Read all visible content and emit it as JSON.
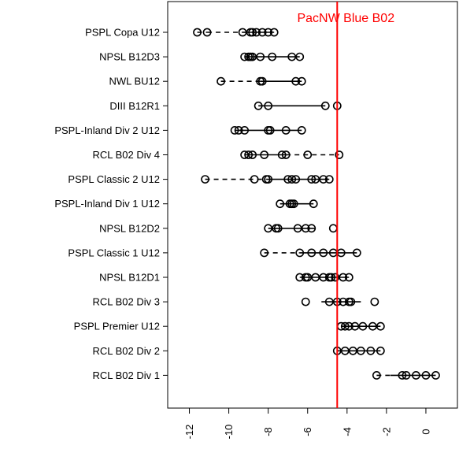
{
  "chart_data": {
    "type": "scatter",
    "title": "",
    "xlabel": "",
    "ylabel": "",
    "xlim": [
      -13.1,
      1.6
    ],
    "x_ticks": [
      "-12",
      "-10",
      "-8",
      "-6",
      "-4",
      "-2",
      "0"
    ],
    "x_tick_values": [
      -12,
      -10,
      -8,
      -6,
      -4,
      -2,
      0
    ],
    "reference_line": {
      "label": "PacNW Blue B02",
      "x": -4.5,
      "color": "#ff0000"
    },
    "grid": false,
    "legend": "none",
    "point_color": "#000000",
    "series": [
      {
        "name": "PSPL Copa U12",
        "values": [
          -11.6,
          -11.1,
          -9.3,
          -8.9,
          -8.8,
          -8.6,
          -8.3,
          -8.0,
          -7.7
        ],
        "segments": [
          [
            -11.6,
            -11.1,
            "dashed"
          ],
          [
            -11.1,
            -9.3,
            "dashed"
          ],
          [
            -9.3,
            -8.9,
            "solid"
          ],
          [
            -8.9,
            -7.7,
            "solid"
          ]
        ]
      },
      {
        "name": "NPSL B12D3",
        "values": [
          -9.2,
          -9.0,
          -8.9,
          -8.8,
          -8.4,
          -7.8,
          -6.8,
          -6.4
        ],
        "segments": [
          [
            -9.2,
            -6.4,
            "solid"
          ]
        ]
      },
      {
        "name": "NWL BU12",
        "values": [
          -10.4,
          -8.4,
          -8.3,
          -6.6,
          -6.3
        ],
        "segments": [
          [
            -10.4,
            -8.4,
            "dashed"
          ],
          [
            -8.4,
            -6.3,
            "solid"
          ]
        ]
      },
      {
        "name": "DIII B12R1",
        "values": [
          -8.5,
          -8.0,
          -5.1,
          -4.5
        ],
        "segments": [
          [
            -8.5,
            -5.1,
            "solid"
          ]
        ]
      },
      {
        "name": "PSPL-Inland Div 2 U12",
        "values": [
          -9.7,
          -9.5,
          -9.2,
          -8.0,
          -7.9,
          -7.1,
          -6.3
        ],
        "segments": [
          [
            -9.7,
            -6.3,
            "solid"
          ]
        ]
      },
      {
        "name": "RCL B02 Div 4",
        "values": [
          -9.2,
          -9.0,
          -8.8,
          -8.2,
          -7.3,
          -7.1,
          -6.0,
          -4.4
        ],
        "segments": [
          [
            -9.2,
            -7.1,
            "solid"
          ],
          [
            -7.1,
            -4.4,
            "dashed"
          ]
        ]
      },
      {
        "name": "PSPL Classic 2 U12",
        "values": [
          -11.2,
          -8.7,
          -8.1,
          -8.0,
          -7.0,
          -6.8,
          -6.6,
          -5.8,
          -5.6,
          -5.2,
          -4.9
        ],
        "segments": [
          [
            -11.2,
            -8.1,
            "dashed"
          ],
          [
            -8.1,
            -4.9,
            "solid"
          ]
        ]
      },
      {
        "name": "PSPL-Inland Div 1 U12",
        "values": [
          -7.4,
          -6.9,
          -6.8,
          -6.7,
          -5.7
        ],
        "segments": [
          [
            -7.4,
            -5.7,
            "solid"
          ]
        ]
      },
      {
        "name": "NPSL B12D2",
        "values": [
          -8.0,
          -7.6,
          -7.5,
          -6.5,
          -6.1,
          -5.8,
          -4.7
        ],
        "segments": [
          [
            -8.0,
            -5.6,
            "solid"
          ]
        ]
      },
      {
        "name": "PSPL Classic 1 U12",
        "values": [
          -8.2,
          -6.4,
          -5.8,
          -5.2,
          -4.7,
          -4.3,
          -3.5
        ],
        "segments": [
          [
            -8.2,
            -6.4,
            "dashed"
          ],
          [
            -6.4,
            -3.5,
            "solid"
          ]
        ]
      },
      {
        "name": "NPSL B12D1",
        "values": [
          -6.4,
          -6.1,
          -6.0,
          -5.6,
          -5.2,
          -4.9,
          -4.8,
          -4.6,
          -4.2,
          -3.9
        ],
        "segments": [
          [
            -6.4,
            -3.9,
            "solid"
          ]
        ]
      },
      {
        "name": "RCL B02 Div 3",
        "values": [
          -6.1,
          -4.9,
          -4.5,
          -4.2,
          -3.9,
          -3.8,
          -2.6
        ],
        "segments": [
          [
            -5.3,
            -3.3,
            "solid"
          ]
        ]
      },
      {
        "name": "PSPL Premier U12",
        "values": [
          -4.3,
          -4.1,
          -3.9,
          -3.6,
          -3.2,
          -2.7,
          -2.3
        ],
        "segments": [
          [
            -4.3,
            -2.3,
            "solid"
          ]
        ]
      },
      {
        "name": "RCL B02 Div 2",
        "values": [
          -4.5,
          -4.1,
          -3.7,
          -3.3,
          -2.8,
          -2.3
        ],
        "segments": [
          [
            -4.5,
            -2.3,
            "solid"
          ]
        ]
      },
      {
        "name": "RCL B02 Div 1",
        "values": [
          -2.5,
          -1.2,
          -1.0,
          -0.5,
          0.0,
          0.5
        ],
        "segments": [
          [
            -2.5,
            -1.8,
            "dashed"
          ],
          [
            -1.8,
            0.5,
            "solid"
          ]
        ]
      }
    ]
  }
}
